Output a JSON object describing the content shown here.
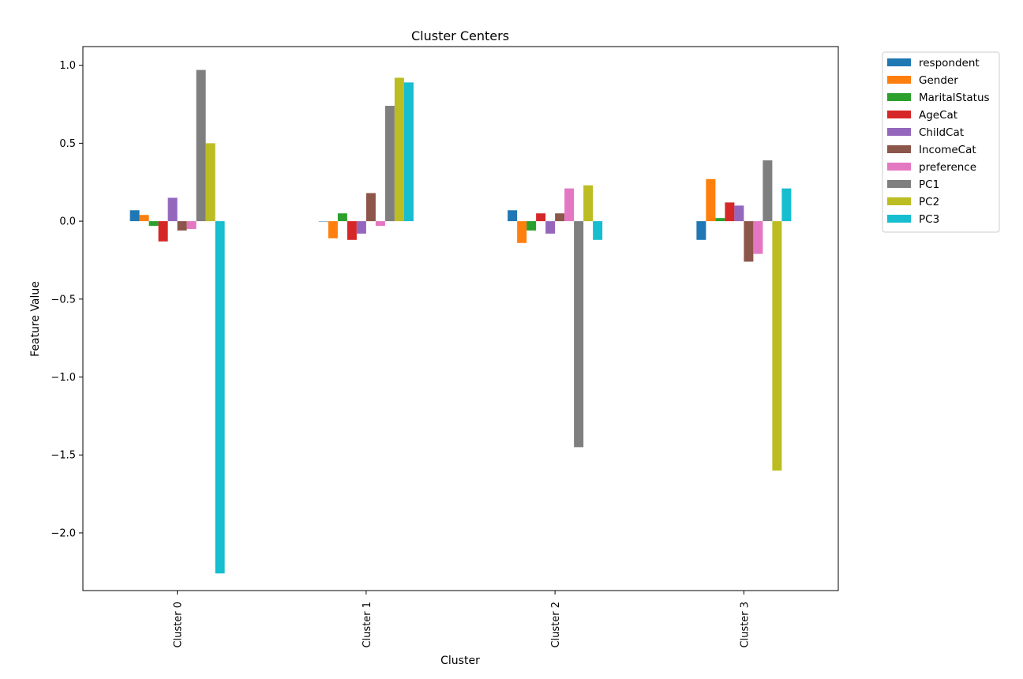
{
  "chart_data": {
    "type": "bar",
    "title": "Cluster Centers",
    "xlabel": "Cluster",
    "ylabel": "Feature Value",
    "categories": [
      "Cluster 0",
      "Cluster 1",
      "Cluster 2",
      "Cluster 3"
    ],
    "ylim": [
      -2.37,
      1.12
    ],
    "yticks": [
      1.0,
      0.5,
      0.0,
      -0.5,
      -1.0,
      -1.5,
      -2.0
    ],
    "ytick_labels": [
      "1.0",
      "0.5",
      "0.0",
      "−0.5",
      "−1.0",
      "−1.5",
      "−2.0"
    ],
    "grid": false,
    "legend_position": "outside-top-right",
    "series": [
      {
        "name": "respondent",
        "color": "#1f77b4",
        "values": [
          0.07,
          0.0,
          0.07,
          -0.12
        ]
      },
      {
        "name": "Gender",
        "color": "#ff7f0e",
        "values": [
          0.04,
          -0.11,
          -0.14,
          0.27
        ]
      },
      {
        "name": "MaritalStatus",
        "color": "#2ca02c",
        "values": [
          -0.03,
          0.05,
          -0.06,
          0.02
        ]
      },
      {
        "name": "AgeCat",
        "color": "#d62728",
        "values": [
          -0.13,
          -0.12,
          0.05,
          0.12
        ]
      },
      {
        "name": "ChildCat",
        "color": "#9467bd",
        "values": [
          0.15,
          -0.08,
          -0.08,
          0.1
        ]
      },
      {
        "name": "IncomeCat",
        "color": "#8c564b",
        "values": [
          -0.06,
          0.18,
          0.05,
          -0.26
        ]
      },
      {
        "name": "preference",
        "color": "#e377c2",
        "values": [
          -0.05,
          -0.03,
          0.21,
          -0.21
        ]
      },
      {
        "name": "PC1",
        "color": "#7f7f7f",
        "values": [
          0.97,
          0.74,
          -1.45,
          0.39
        ]
      },
      {
        "name": "PC2",
        "color": "#bcbd22",
        "values": [
          0.5,
          0.92,
          0.23,
          -1.6
        ]
      },
      {
        "name": "PC3",
        "color": "#17becf",
        "values": [
          -2.26,
          0.89,
          -0.12,
          0.21
        ]
      }
    ]
  }
}
